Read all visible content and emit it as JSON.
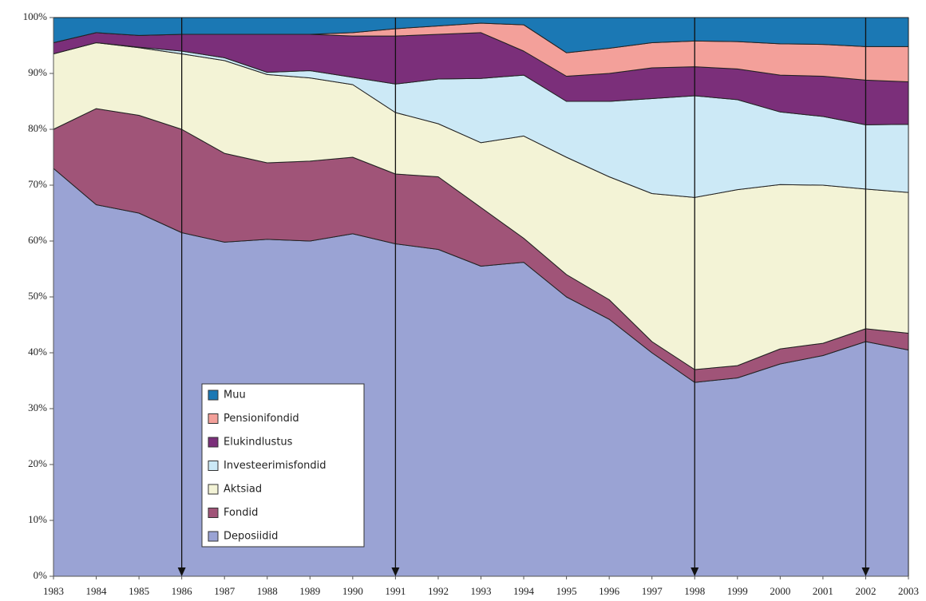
{
  "chart_data": {
    "type": "stacked_area",
    "categories": [
      "1983",
      "1984",
      "1985",
      "1986",
      "1987",
      "1988",
      "1989",
      "1990",
      "1991",
      "1992",
      "1993",
      "1994",
      "1995",
      "1996",
      "1997",
      "1998",
      "1999",
      "2000",
      "2001",
      "2002",
      "2003"
    ],
    "series": [
      {
        "name": "Deposiidid",
        "color": "#9aa3d4",
        "values": [
          73,
          66.5,
          65,
          61.5,
          59.8,
          60.3,
          60,
          61.3,
          59.5,
          58.5,
          55.5,
          56.2,
          50,
          46,
          40,
          34.7,
          35.5,
          38,
          39.5,
          42,
          40.5
        ]
      },
      {
        "name": "Fondid",
        "color": "#a05478",
        "values": [
          7,
          17.2,
          17.5,
          18.5,
          15.9,
          13.7,
          14.3,
          13.7,
          12.5,
          13,
          10.5,
          4.3,
          4,
          3.5,
          2,
          2.3,
          2.2,
          2.7,
          2.2,
          2.3,
          3
        ]
      },
      {
        "name": "Aktsiad",
        "color": "#f3f3d6",
        "values": [
          13.5,
          11.8,
          12.1,
          13.5,
          16.6,
          15.8,
          14.9,
          13,
          11,
          9.5,
          11.6,
          18.3,
          21,
          22,
          26.5,
          30.8,
          31.5,
          29.4,
          28.3,
          25,
          25.2
        ]
      },
      {
        "name": "Investeerimisfondid",
        "color": "#cce9f6",
        "values": [
          0,
          0,
          0.1,
          0.5,
          0.5,
          0.4,
          1.3,
          1.3,
          5.1,
          8,
          11.5,
          10.9,
          10,
          13.5,
          17,
          18.2,
          16.1,
          13,
          12.3,
          11.5,
          12.2
        ]
      },
      {
        "name": "Elukindlustus",
        "color": "#7b2f7a",
        "values": [
          2,
          1.8,
          2.1,
          3,
          4.2,
          6.8,
          6.5,
          7.4,
          8.6,
          8,
          8.2,
          4.3,
          4.5,
          5,
          5.5,
          5.2,
          5.5,
          6.6,
          7.2,
          8,
          7.6
        ]
      },
      {
        "name": "Pensionifondid",
        "color": "#f3a09a",
        "values": [
          0,
          0,
          0,
          0,
          0,
          0,
          0,
          0.6,
          1.3,
          1.5,
          1.7,
          4.7,
          4.2,
          4.5,
          4.5,
          4.6,
          4.9,
          5.6,
          5.7,
          6,
          6.3
        ]
      },
      {
        "name": "Muu",
        "color": "#1b78b4",
        "values": [
          4.5,
          2.7,
          3.2,
          3,
          3,
          3,
          3,
          2.7,
          2,
          1.5,
          1,
          1.3,
          6.3,
          5.5,
          4.5,
          4.2,
          4.3,
          4.7,
          4.8,
          5.2,
          5.2
        ]
      }
    ],
    "ylim": [
      0,
      100
    ],
    "yticks": [
      {
        "value": 0,
        "label": "0%"
      },
      {
        "value": 10,
        "label": "10%"
      },
      {
        "value": 20,
        "label": "20%"
      },
      {
        "value": 30,
        "label": "30%"
      },
      {
        "value": 40,
        "label": "40%"
      },
      {
        "value": 50,
        "label": "50%"
      },
      {
        "value": 60,
        "label": "60%"
      },
      {
        "value": 70,
        "label": "70%"
      },
      {
        "value": 80,
        "label": "80%"
      },
      {
        "value": 90,
        "label": "90%"
      },
      {
        "value": 100,
        "label": "100%"
      }
    ],
    "legend": "lower-left"
  }
}
